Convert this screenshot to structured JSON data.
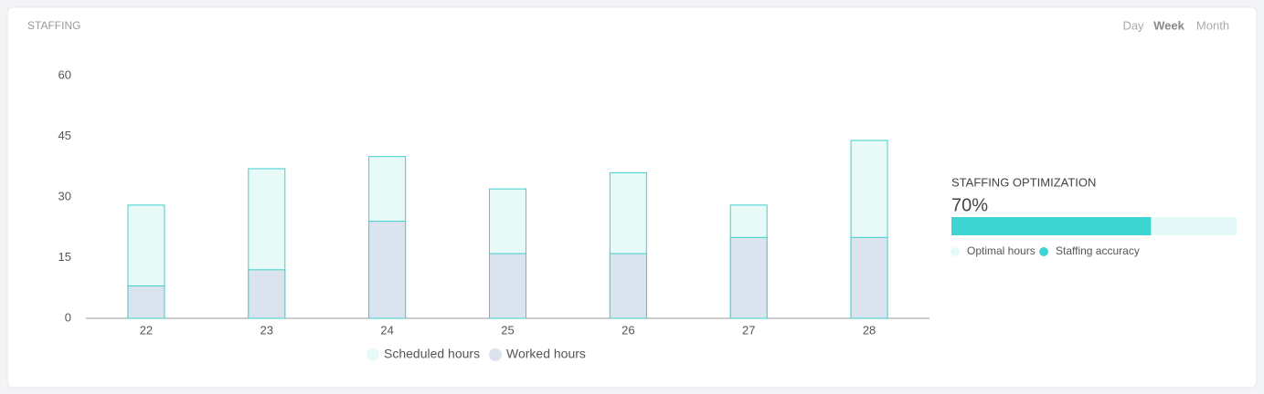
{
  "header": {
    "title": "STAFFING",
    "tabs": [
      "Day",
      "Week",
      "Month"
    ],
    "active_tab": 1
  },
  "chart_data": {
    "type": "bar",
    "mode": "overlay",
    "categories": [
      "22",
      "23",
      "24",
      "25",
      "26",
      "27",
      "28"
    ],
    "series": [
      {
        "name": "Scheduled hours",
        "color": "#e8faf8",
        "stroke": "#3dd1cc",
        "values": [
          28,
          37,
          40,
          32,
          36,
          28,
          44
        ]
      },
      {
        "name": "Worked hours",
        "color": "#dbe3ee",
        "stroke": "#3dd1cc",
        "values": [
          8,
          12,
          24,
          16,
          16,
          20,
          20
        ]
      }
    ],
    "ylim": [
      0,
      60
    ],
    "yticks": [
      0,
      15,
      30,
      45,
      60
    ]
  },
  "optimization": {
    "title": "STAFFING OPTIMIZATION",
    "value": 70,
    "value_label": "70%",
    "legend": [
      {
        "name": "Optimal hours",
        "color": "#e6f9f9"
      },
      {
        "name": "Staffing accuracy",
        "color": "#3dd5d2"
      }
    ]
  }
}
